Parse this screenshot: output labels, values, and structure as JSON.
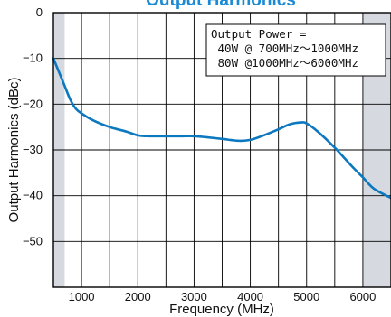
{
  "chart_data": {
    "type": "line",
    "title": "Output Harmonics",
    "xlabel": "Frequency (MHz)",
    "ylabel": "Output Harmonics (dBc)",
    "xlim": [
      500,
      6500
    ],
    "ylim": [
      -60,
      0
    ],
    "x_ticks": [
      1000,
      2000,
      3000,
      4000,
      5000,
      6000
    ],
    "x_tick_labels": [
      "1000",
      "2000",
      "3000",
      "4000",
      "5000",
      "6000"
    ],
    "y_ticks": [
      0,
      -10,
      -20,
      -30,
      -40,
      -50
    ],
    "y_tick_labels": [
      "0",
      "−10",
      "−20",
      "−30",
      "−40",
      "−50"
    ],
    "x_gridlines": [
      500,
      1000,
      1500,
      2000,
      2500,
      3000,
      3500,
      4000,
      4500,
      5000,
      5500,
      6000,
      6500
    ],
    "y_gridlines": [
      0,
      -10,
      -20,
      -30,
      -40,
      -50,
      -60
    ],
    "grid": true,
    "shaded_ranges": [
      [
        500,
        700
      ],
      [
        6000,
        6500
      ]
    ],
    "annotation": {
      "lines": [
        "Output Power =",
        " 40W @ 700MHz〜1000MHz",
        " 80W @1000MHz〜6000MHz"
      ],
      "placement": "top-right"
    },
    "series": [
      {
        "x": [
          500,
          600,
          700,
          800,
          900,
          1000,
          1200,
          1500,
          1800,
          2000,
          2200,
          2500,
          2800,
          3000,
          3200,
          3500,
          3800,
          4000,
          4200,
          4500,
          4700,
          4900,
          5000,
          5200,
          5500,
          5800,
          6000,
          6200,
          6500
        ],
        "values": [
          -10,
          -13,
          -16,
          -19,
          -21,
          -22,
          -23.5,
          -25,
          -26,
          -26.8,
          -27,
          -27,
          -27,
          -27,
          -27.2,
          -27.6,
          -28,
          -27.8,
          -27,
          -25.5,
          -24.4,
          -24,
          -24.2,
          -26,
          -29.5,
          -33.5,
          -36,
          -38.5,
          -40.5
        ]
      }
    ],
    "colors": {
      "line": "#0b78c0",
      "title": "#1a8ad4",
      "shade": "#d6d9df",
      "grid": "#000000"
    }
  }
}
